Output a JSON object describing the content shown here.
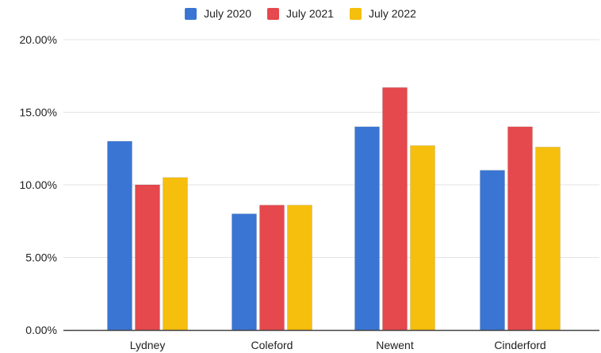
{
  "chart_data": {
    "type": "bar",
    "categories": [
      "Lydney",
      "Coleford",
      "Newent",
      "Cinderford"
    ],
    "series": [
      {
        "name": "July 2020",
        "color": "#3a75d4",
        "values": [
          13.0,
          8.0,
          14.0,
          11.0
        ]
      },
      {
        "name": "July 2021",
        "color": "#e5484d",
        "values": [
          10.0,
          8.6,
          16.7,
          14.0
        ]
      },
      {
        "name": "July 2022",
        "color": "#f6be0d",
        "values": [
          10.5,
          8.6,
          12.7,
          12.6
        ]
      }
    ],
    "y_ticks": [
      "0.00%",
      "5.00%",
      "10.00%",
      "15.00%",
      "20.00%"
    ],
    "ylim": [
      0,
      20
    ],
    "legend_position": "top",
    "grid": true
  }
}
